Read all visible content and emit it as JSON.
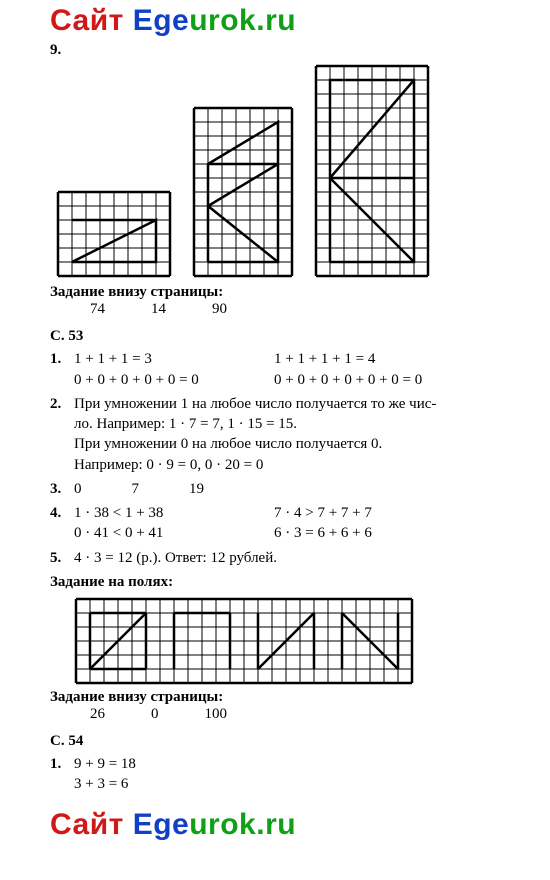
{
  "watermark": {
    "part1": "Сайт ",
    "part2": "Ege",
    "part3": "urok.ru"
  },
  "problem9": {
    "label": "9."
  },
  "grid_style": {
    "cell": 14,
    "stroke": "#000000",
    "thin": 1,
    "thick": 2.5
  },
  "grid_a": {
    "cols": 8,
    "rows": 6,
    "shape": [
      [
        1,
        5
      ],
      [
        7,
        2
      ],
      [
        7,
        5
      ],
      [
        1,
        5
      ]
    ],
    "extra": [
      [
        1,
        2
      ],
      [
        7,
        2
      ]
    ]
  },
  "grid_b": {
    "cols": 7,
    "rows": 12,
    "shape": [
      [
        1,
        11
      ],
      [
        1,
        4
      ],
      [
        6,
        1
      ],
      [
        6,
        11
      ],
      [
        1,
        11
      ]
    ],
    "inner": [
      [
        [
          1,
          4
        ],
        [
          6,
          4
        ]
      ],
      [
        [
          1,
          7
        ],
        [
          6,
          4
        ]
      ],
      [
        [
          1,
          7
        ],
        [
          6,
          11
        ]
      ]
    ]
  },
  "grid_c": {
    "cols": 8,
    "rows": 15,
    "shape": [
      [
        1,
        14
      ],
      [
        1,
        1
      ],
      [
        7,
        1
      ],
      [
        7,
        14
      ],
      [
        1,
        14
      ]
    ],
    "inner": [
      [
        [
          1,
          8
        ],
        [
          7,
          8
        ]
      ],
      [
        [
          1,
          8
        ],
        [
          7,
          1
        ]
      ],
      [
        [
          1,
          8
        ],
        [
          7,
          14
        ]
      ]
    ]
  },
  "bottom1": {
    "title": "Задание внизу страницы:",
    "vals": [
      "74",
      "14",
      "90"
    ]
  },
  "s53": {
    "title": "С. 53",
    "t1": {
      "num": "1.",
      "l1a": "1 + 1 + 1 = 3",
      "l1b": "1 + 1 + 1 + 1 = 4",
      "l2a": "0 + 0 + 0 + 0 + 0 = 0",
      "l2b": "0 + 0 + 0 + 0 + 0 + 0 = 0"
    },
    "t2": {
      "num": "2.",
      "l1": "При умножении 1 на любое число получается то же чис-",
      "l2": "ло. Например: 1 · 7 = 7, 1 · 15 = 15.",
      "l3": "При умножении 0 на любое число получается 0.",
      "l4": "Например: 0 · 9 = 0, 0 · 20 = 0"
    },
    "t3": {
      "num": "3.",
      "vals": [
        "0",
        "7",
        "19"
      ]
    },
    "t4": {
      "num": "4.",
      "l1a": "1 · 38 < 1 + 38",
      "l1b": "7 · 4 > 7 + 7 + 7",
      "l2a": "0 · 41 < 0 + 41",
      "l2b": "6 · 3 = 6 + 6 + 6"
    },
    "t5": {
      "num": "5.",
      "text": "4 · 3 = 12 (р.). Ответ: 12 рублей."
    }
  },
  "fields": {
    "title": "Задание на полях:",
    "cols": 24,
    "rows": 6,
    "segments": [
      [
        [
          1,
          5
        ],
        [
          1,
          1
        ]
      ],
      [
        [
          1,
          1
        ],
        [
          5,
          1
        ]
      ],
      [
        [
          5,
          1
        ],
        [
          5,
          5
        ]
      ],
      [
        [
          5,
          5
        ],
        [
          1,
          5
        ]
      ],
      [
        [
          1,
          5
        ],
        [
          5,
          1
        ]
      ],
      [
        [
          7,
          5
        ],
        [
          7,
          1
        ]
      ],
      [
        [
          7,
          1
        ],
        [
          11,
          1
        ]
      ],
      [
        [
          11,
          1
        ],
        [
          11,
          5
        ]
      ],
      [
        [
          13,
          1
        ],
        [
          13,
          5
        ]
      ],
      [
        [
          13,
          5
        ],
        [
          17,
          1
        ]
      ],
      [
        [
          17,
          1
        ],
        [
          17,
          5
        ]
      ],
      [
        [
          19,
          5
        ],
        [
          19,
          1
        ]
      ],
      [
        [
          19,
          1
        ],
        [
          23,
          5
        ]
      ],
      [
        [
          23,
          5
        ],
        [
          23,
          1
        ]
      ]
    ]
  },
  "bottom2": {
    "title": "Задание внизу страницы:",
    "vals": [
      "26",
      "0",
      "100"
    ]
  },
  "s54": {
    "title": "С. 54",
    "t1": {
      "num": "1.",
      "l1": "9 + 9 = 18",
      "l2": "3 + 3 = 6"
    }
  }
}
